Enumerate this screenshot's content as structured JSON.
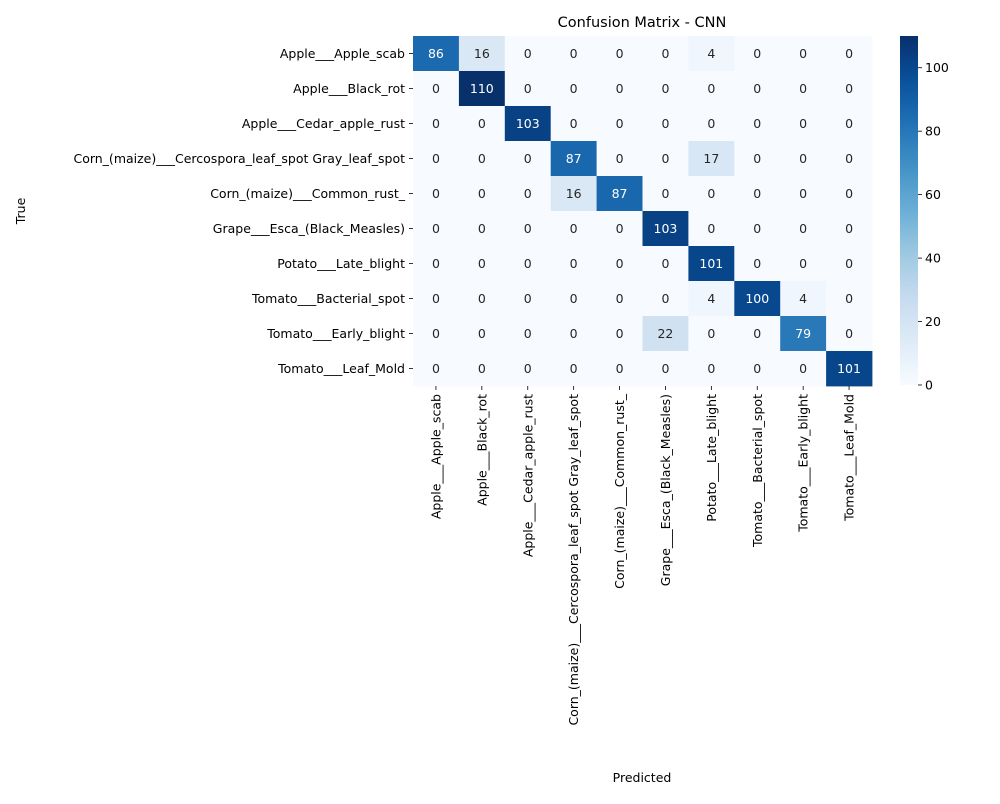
{
  "chart_data": {
    "type": "heatmap",
    "title": "Confusion Matrix - CNN",
    "xlabel": "Predicted",
    "ylabel": "True",
    "categories": [
      "Apple___Apple_scab",
      "Apple___Black_rot",
      "Apple___Cedar_apple_rust",
      "Corn_(maize)___Cercospora_leaf_spot Gray_leaf_spot",
      "Corn_(maize)___Common_rust_",
      "Grape___Esca_(Black_Measles)",
      "Potato___Late_blight",
      "Tomato___Bacterial_spot",
      "Tomato___Early_blight",
      "Tomato___Leaf_Mold"
    ],
    "matrix": [
      [
        86,
        16,
        0,
        0,
        0,
        0,
        4,
        0,
        0,
        0
      ],
      [
        0,
        110,
        0,
        0,
        0,
        0,
        0,
        0,
        0,
        0
      ],
      [
        0,
        0,
        103,
        0,
        0,
        0,
        0,
        0,
        0,
        0
      ],
      [
        0,
        0,
        0,
        87,
        0,
        0,
        17,
        0,
        0,
        0
      ],
      [
        0,
        0,
        0,
        16,
        87,
        0,
        0,
        0,
        0,
        0
      ],
      [
        0,
        0,
        0,
        0,
        0,
        103,
        0,
        0,
        0,
        0
      ],
      [
        0,
        0,
        0,
        0,
        0,
        0,
        101,
        0,
        0,
        0
      ],
      [
        0,
        0,
        0,
        0,
        0,
        0,
        4,
        100,
        4,
        0
      ],
      [
        0,
        0,
        0,
        0,
        0,
        22,
        0,
        0,
        79,
        0
      ],
      [
        0,
        0,
        0,
        0,
        0,
        0,
        0,
        0,
        0,
        101
      ]
    ],
    "colorbar": {
      "range": [
        0,
        110
      ],
      "ticks": [
        0,
        20,
        40,
        60,
        80,
        100
      ],
      "colormap": "Blues"
    },
    "grid": false
  }
}
